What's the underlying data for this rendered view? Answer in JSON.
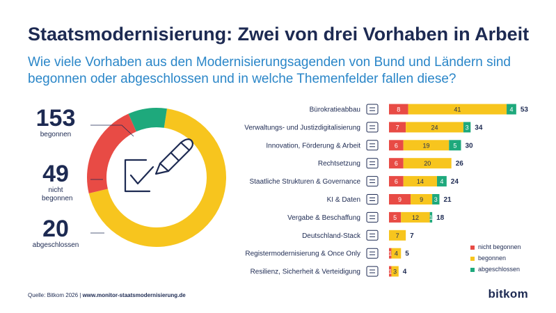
{
  "title": "Staatsmodernisierung: Zwei von drei Vorhaben in Arbeit",
  "subtitle": "Wie viele Vorhaben aus den Modernisierungsagenden von Bund und Ländern sind begonnen oder abgeschlossen und in welche Themenfelder fallen diese?",
  "colors": {
    "nicht_begonnen": "#e84b45",
    "begonnen": "#f7c51e",
    "abgeschlossen": "#1ea97c",
    "navy": "#1d2a52"
  },
  "summary": [
    {
      "value": "153",
      "label": "begonnen"
    },
    {
      "value": "49",
      "label": "nicht begonnen"
    },
    {
      "value": "20",
      "label": "abgeschlossen"
    }
  ],
  "chart_data": [
    {
      "type": "pie",
      "labels": [
        "begonnen",
        "nicht begonnen",
        "abgeschlossen"
      ],
      "values": [
        153,
        49,
        20
      ],
      "colors": [
        "#f7c51e",
        "#e84b45",
        "#1ea97c"
      ]
    },
    {
      "type": "bar",
      "orientation": "horizontal",
      "stacked": true,
      "categories": [
        "Bürokratieabbau",
        "Verwaltungs- und Justizdigitalisierung",
        "Innovation, Förderung & Arbeit",
        "Rechtsetzung",
        "Staatliche Strukturen & Governance",
        "KI & Daten",
        "Vergabe & Beschaffung",
        "Deutschland-Stack",
        "Registermodernisierung & Once Only",
        "Resilienz, Sicherheit & Verteidigung"
      ],
      "category_icons": [
        "documents-icon",
        "scales-icon",
        "lightbulb-icon",
        "gavel-icon",
        "building-icon",
        "brain-icon",
        "cart-icon",
        "server-stack-icon",
        "folder-icon",
        "shield-icon"
      ],
      "series": [
        {
          "name": "nicht begonnen",
          "values": [
            8,
            7,
            6,
            6,
            6,
            9,
            5,
            0,
            1,
            1
          ],
          "color": "#e84b45"
        },
        {
          "name": "begonnen",
          "values": [
            41,
            24,
            19,
            20,
            14,
            9,
            12,
            7,
            4,
            3
          ],
          "color": "#f7c51e"
        },
        {
          "name": "abgeschlossen",
          "values": [
            4,
            3,
            5,
            0,
            4,
            3,
            1,
            0,
            0,
            0
          ],
          "color": "#1ea97c"
        }
      ],
      "totals": [
        53,
        34,
        30,
        26,
        24,
        21,
        18,
        7,
        5,
        4
      ],
      "legend": "bottom-right"
    }
  ],
  "footer": {
    "source_label": "Quelle: Bitkom 2026 |",
    "source_url": "www.monitor-staatsmodernisierung.de"
  },
  "brand": "bitkom"
}
